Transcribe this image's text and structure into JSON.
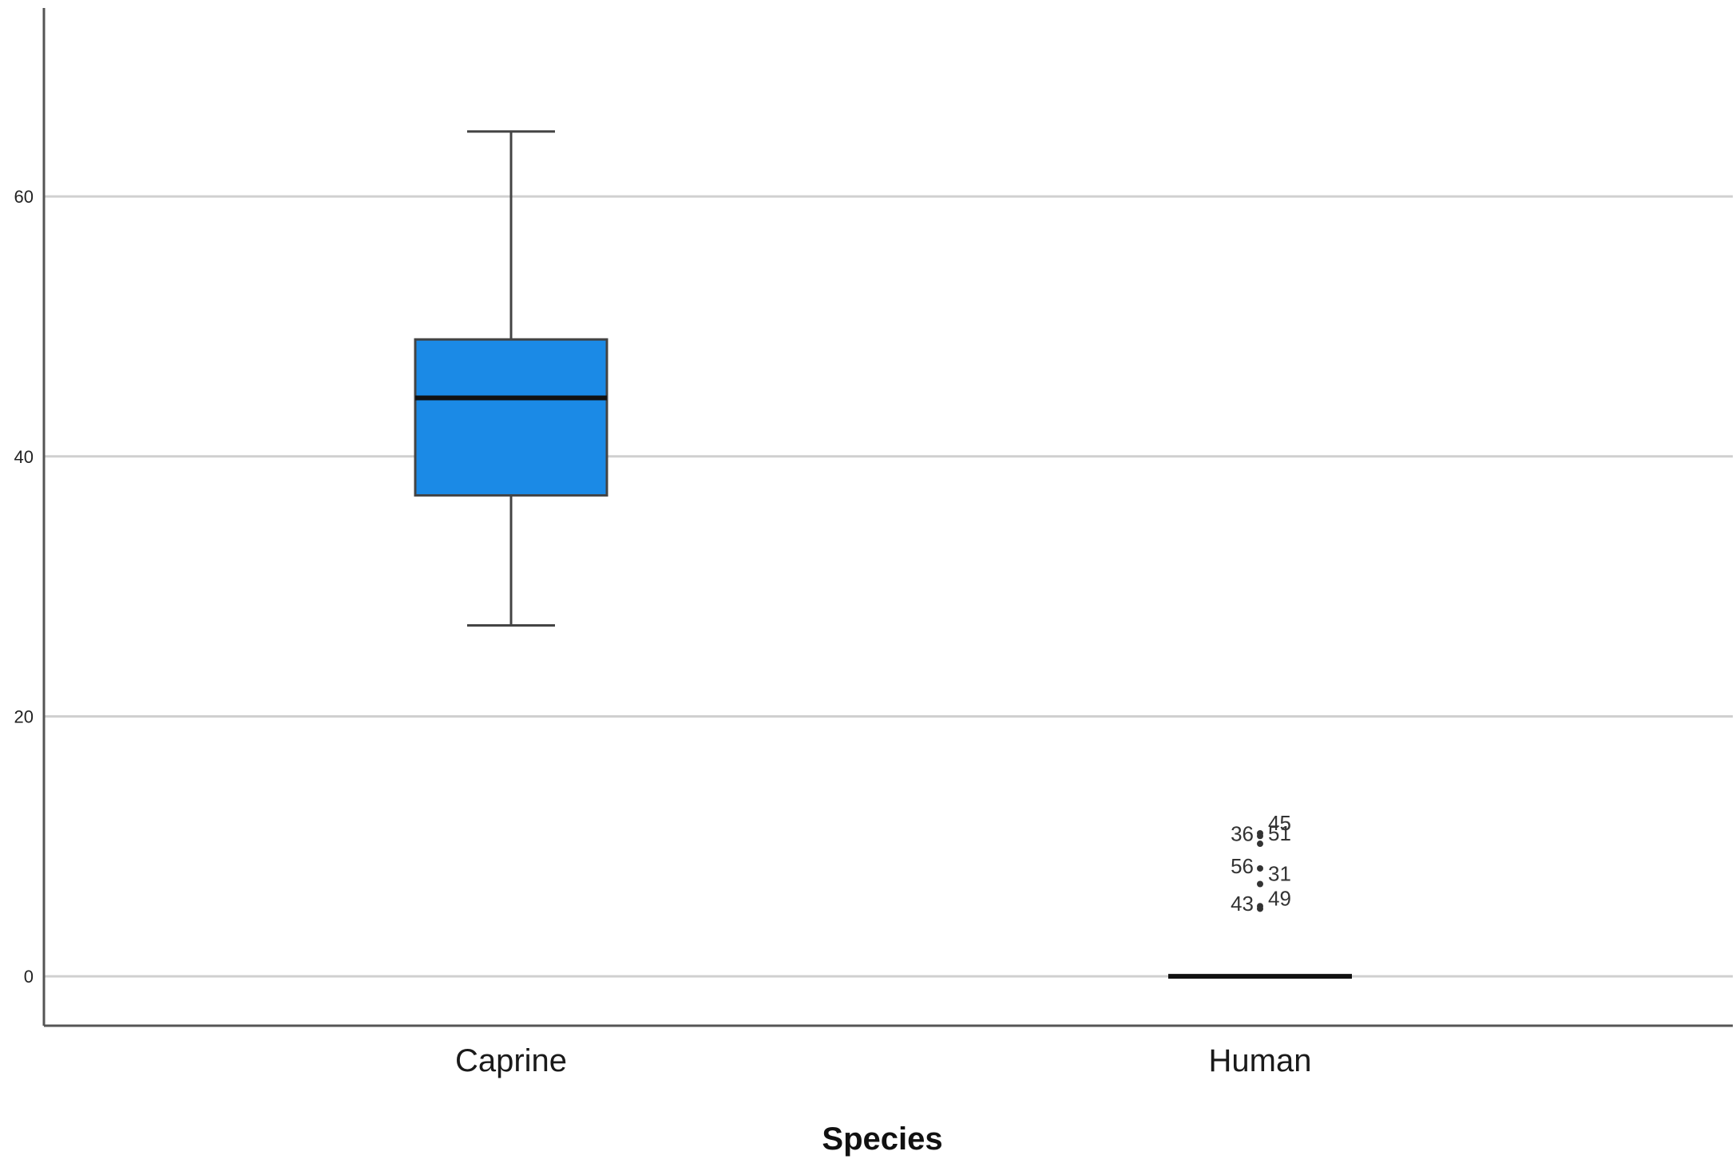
{
  "chart_data": {
    "type": "box",
    "title": "",
    "xlabel": "Species",
    "ylabel": "",
    "ylim": [
      -3.8,
      74.5
    ],
    "yticks": [
      0,
      20,
      40,
      60
    ],
    "grid": true,
    "colors": {
      "box_fill": "#1b8ae6",
      "box_stroke": "#444444",
      "median": "#111111",
      "grid": "#d0d0d0",
      "axis": "#555555"
    },
    "categories": [
      "Caprine",
      "Human"
    ],
    "boxes": [
      {
        "category": "Caprine",
        "min": 27,
        "q1": 37,
        "median": 44.5,
        "q3": 49,
        "max": 65,
        "outliers": []
      },
      {
        "category": "Human",
        "min": 0,
        "q1": 0,
        "median": 0,
        "q3": 0,
        "max": 0,
        "outliers": [
          {
            "label": "45",
            "value": 11
          },
          {
            "label": "36",
            "value": 10.8
          },
          {
            "label": "51",
            "value": 10.2
          },
          {
            "label": "56",
            "value": 8.3
          },
          {
            "label": "31",
            "value": 7.1
          },
          {
            "label": "43",
            "value": 5.4
          },
          {
            "label": "49",
            "value": 5.2
          }
        ]
      }
    ]
  }
}
